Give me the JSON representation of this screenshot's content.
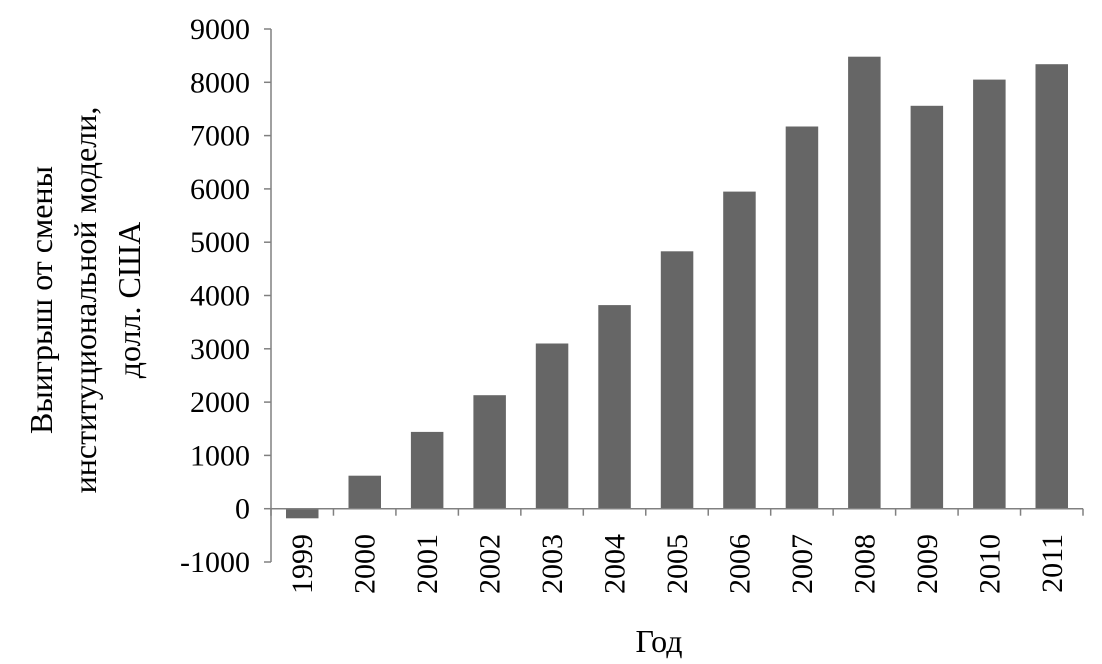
{
  "chart_data": {
    "type": "bar",
    "categories": [
      "1999",
      "2000",
      "2001",
      "2002",
      "2003",
      "2004",
      "2005",
      "2006",
      "2007",
      "2008",
      "2009",
      "2010",
      "2011"
    ],
    "values": [
      -180,
      620,
      1440,
      2130,
      3100,
      3820,
      4830,
      5950,
      7170,
      8480,
      7560,
      8050,
      8340
    ],
    "title": "",
    "xlabel": "Год",
    "ylabel_lines": [
      "Выигрыш от смены",
      "институциональной модели,",
      "долл. США"
    ],
    "ylim": [
      -1000,
      9000
    ],
    "yticks": [
      "9000",
      "8000",
      "7000",
      "6000",
      "5000",
      "4000",
      "3000",
      "2000",
      "1000",
      "0",
      "-1000"
    ],
    "grid": false,
    "legend": "none",
    "bar_color": "#666666",
    "axis_color": "#808080"
  }
}
